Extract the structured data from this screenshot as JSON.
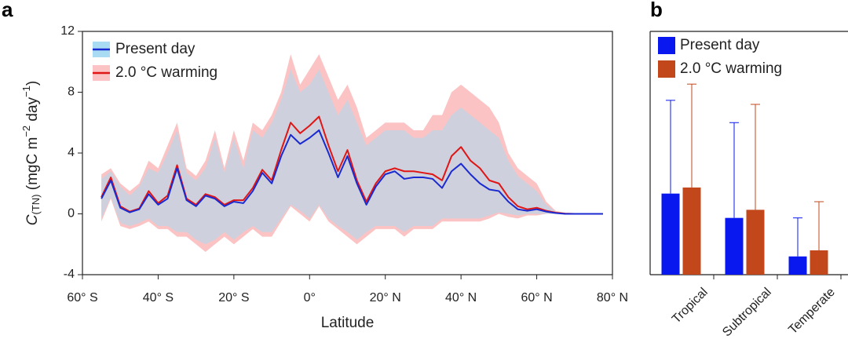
{
  "chart_data": [
    {
      "type": "line",
      "panel": "a",
      "xlabel": "Latitude",
      "ylabel_parts": [
        "C",
        "(TN)",
        " (mgC m",
        "−2",
        " day",
        "−1",
        ")"
      ],
      "xlim": [
        -60,
        80
      ],
      "ylim": [
        -4,
        12
      ],
      "xticks": [
        {
          "value": -60,
          "label": "60° S"
        },
        {
          "value": -40,
          "label": "40° S"
        },
        {
          "value": -20,
          "label": "20° S"
        },
        {
          "value": 0,
          "label": "0°"
        },
        {
          "value": 20,
          "label": "20° N"
        },
        {
          "value": 40,
          "label": "40° N"
        },
        {
          "value": 60,
          "label": "60° N"
        },
        {
          "value": 80,
          "label": "80° N"
        }
      ],
      "yticks": [
        -4,
        0,
        4,
        8,
        12
      ],
      "legend": "upper left",
      "x": [
        -55,
        -52.5,
        -50,
        -47.5,
        -45,
        -42.5,
        -40,
        -37.5,
        -35,
        -32.5,
        -30,
        -27.5,
        -25,
        -22.5,
        -20,
        -17.5,
        -15,
        -12.5,
        -10,
        -7.5,
        -5,
        -2.5,
        0,
        2.5,
        5,
        7.5,
        10,
        12.5,
        15,
        17.5,
        20,
        22.5,
        25,
        27.5,
        30,
        32.5,
        35,
        37.5,
        40,
        42.5,
        45,
        47.5,
        50,
        52.5,
        55,
        57.5,
        60,
        62.5,
        65,
        67.5,
        70,
        72.5,
        75,
        77.5
      ],
      "series": [
        {
          "name": "Present day",
          "color": "#1a2ad0",
          "band_color": "#a9dcf3",
          "values": [
            1.0,
            2.2,
            0.4,
            0.1,
            0.3,
            1.3,
            0.6,
            1.0,
            3.0,
            0.9,
            0.5,
            1.2,
            1.0,
            0.5,
            0.8,
            0.7,
            1.5,
            2.7,
            2.0,
            3.8,
            5.2,
            4.6,
            5.0,
            5.5,
            4.0,
            2.4,
            3.8,
            2.0,
            0.6,
            1.8,
            2.6,
            2.8,
            2.3,
            2.4,
            2.4,
            2.3,
            1.7,
            2.8,
            3.3,
            2.6,
            2.0,
            1.6,
            1.5,
            0.8,
            0.3,
            0.2,
            0.3,
            0.15,
            0.05,
            0,
            0,
            0,
            0,
            0
          ],
          "upper": [
            2.3,
            2.8,
            1.8,
            1.2,
            1.8,
            3.0,
            2.7,
            4.0,
            5.5,
            2.7,
            2.2,
            3.0,
            5.0,
            2.7,
            5.0,
            3.0,
            5.5,
            5.0,
            6.0,
            7.5,
            9.5,
            8.0,
            8.5,
            9.5,
            8.0,
            6.5,
            7.5,
            6.0,
            4.5,
            5.0,
            5.5,
            5.5,
            5.5,
            5.0,
            5.0,
            5.5,
            5.5,
            6.5,
            7.0,
            6.5,
            6.0,
            5.5,
            5.0,
            3.5,
            2.5,
            2.0,
            1.5,
            0.6,
            0.15,
            0.03,
            0,
            0,
            0,
            0
          ],
          "lower": [
            -0.3,
            1.1,
            -0.6,
            -0.8,
            -0.6,
            -0.3,
            -0.8,
            -0.8,
            -1.2,
            -1.2,
            -1.7,
            -2.0,
            -1.7,
            -1.2,
            -1.7,
            -1.2,
            -0.8,
            -1.2,
            -1.2,
            -0.3,
            0.6,
            0.2,
            -0.3,
            0.6,
            -0.3,
            -0.8,
            -1.2,
            -1.7,
            -1.2,
            -0.8,
            -0.8,
            -0.8,
            -1.2,
            -0.8,
            -0.8,
            -0.8,
            -0.3,
            -0.3,
            -0.3,
            -0.3,
            -0.3,
            -0.1,
            0.1,
            0.0,
            -0.1,
            0,
            0,
            0,
            0,
            0,
            0,
            0,
            0,
            0
          ]
        },
        {
          "name": "2.0 °C warming",
          "color": "#e01515",
          "band_color": "#fbc3c3",
          "values": [
            1.1,
            2.4,
            0.5,
            0.15,
            0.35,
            1.5,
            0.7,
            1.2,
            3.2,
            1.0,
            0.6,
            1.3,
            1.1,
            0.6,
            0.9,
            0.9,
            1.7,
            2.9,
            2.2,
            4.2,
            6.0,
            5.3,
            5.8,
            6.4,
            4.5,
            2.8,
            4.2,
            2.2,
            0.8,
            2.0,
            2.8,
            3.0,
            2.8,
            2.8,
            2.7,
            2.6,
            2.2,
            3.8,
            4.4,
            3.5,
            3.0,
            2.2,
            2.0,
            1.1,
            0.5,
            0.3,
            0.4,
            0.2,
            0.08,
            0.02,
            0,
            0,
            0,
            0
          ],
          "upper": [
            2.6,
            3.0,
            2.0,
            1.5,
            2.0,
            3.5,
            3.0,
            4.5,
            6.0,
            3.0,
            2.5,
            3.5,
            5.5,
            3.0,
            5.5,
            3.5,
            6.0,
            5.5,
            6.5,
            8.0,
            10.5,
            8.5,
            9.5,
            10.5,
            9.0,
            7.5,
            8.5,
            7.0,
            5.0,
            5.5,
            6.0,
            6.0,
            6.0,
            5.5,
            5.5,
            6.5,
            6.5,
            8.0,
            8.5,
            8.0,
            7.5,
            7.0,
            6.0,
            4.0,
            3.0,
            2.5,
            2.0,
            0.8,
            0.2,
            0.05,
            0,
            0,
            0,
            0
          ],
          "lower": [
            -0.5,
            1.0,
            -0.8,
            -1.0,
            -0.8,
            -0.5,
            -1.0,
            -1.0,
            -1.5,
            -1.5,
            -2.0,
            -2.5,
            -2.0,
            -1.5,
            -2.0,
            -1.5,
            -1.0,
            -1.5,
            -1.5,
            -0.5,
            0.5,
            0.0,
            -0.5,
            0.5,
            -0.5,
            -1.0,
            -1.5,
            -2.0,
            -1.5,
            -1.0,
            -1.0,
            -1.0,
            -1.5,
            -1.0,
            -1.0,
            -1.0,
            -0.5,
            -0.5,
            -0.5,
            -0.5,
            -0.5,
            -0.3,
            0.0,
            -0.2,
            -0.3,
            -0.1,
            -0.1,
            0,
            0,
            0,
            0,
            0,
            0,
            0
          ]
        }
      ]
    },
    {
      "type": "bar",
      "panel": "b",
      "categories": [
        "Tropical",
        "Subtropical",
        "Temperate"
      ],
      "ylim": [
        0,
        12
      ],
      "legend": "upper left",
      "series": [
        {
          "name": "Present day",
          "color": "#0a18f0",
          "values": [
            4.0,
            2.8,
            0.9
          ],
          "errors": [
            4.6,
            4.7,
            1.9
          ]
        },
        {
          "name": "2.0 °C warming",
          "color": "#c2481c",
          "values": [
            4.3,
            3.2,
            1.2
          ],
          "errors": [
            5.1,
            5.2,
            2.4
          ]
        }
      ]
    }
  ]
}
